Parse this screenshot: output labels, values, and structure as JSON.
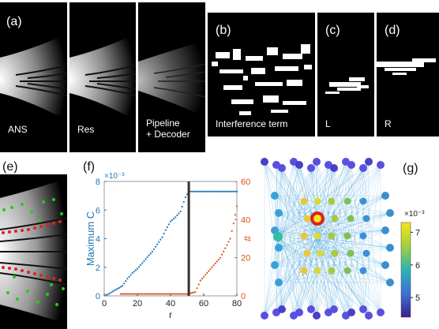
{
  "panels": {
    "a": {
      "label": "(a)",
      "captions": [
        "ANS",
        "Res",
        "Pipeline\n+ Decoder"
      ]
    },
    "b": {
      "label": "(b)",
      "caption": "Interference term"
    },
    "c": {
      "label": "(c)",
      "caption": "L"
    },
    "d": {
      "label": "(d)",
      "caption": "R"
    },
    "e": {
      "label": "(e)"
    },
    "f": {
      "label": "(f)"
    },
    "g": {
      "label": "(g)"
    }
  },
  "chart_data": [
    {
      "type": "scatter",
      "panel": "f",
      "xlabel": "r",
      "ylabel_left": "Maximum C",
      "ylabel_right": "#",
      "left_scale_note": "×10⁻³",
      "xlim": [
        0,
        80
      ],
      "ylim_left": [
        0,
        8
      ],
      "ylim_right": [
        0,
        60
      ],
      "xticks": [
        0,
        20,
        40,
        60,
        80
      ],
      "yticks_left": [
        0,
        2,
        4,
        6,
        8
      ],
      "yticks_right": [
        0,
        20,
        40,
        60
      ],
      "vertical_marker_r": 51,
      "colors": {
        "left": "#1f77b4",
        "right": "#d95319",
        "marker": "#333333"
      },
      "series": [
        {
          "axis": "left",
          "points": [
            [
              1,
              0.05
            ],
            [
              3,
              0.15
            ],
            [
              5,
              0.3
            ],
            [
              8,
              0.5
            ],
            [
              11,
              0.7
            ],
            [
              14,
              1.2
            ],
            [
              17,
              1.6
            ],
            [
              20,
              1.9
            ],
            [
              23,
              2.3
            ],
            [
              26,
              2.7
            ],
            [
              29,
              3.1
            ],
            [
              32,
              3.6
            ],
            [
              35,
              4.1
            ],
            [
              37,
              4.6
            ],
            [
              40,
              5.2
            ],
            [
              43,
              5.5
            ],
            [
              46,
              5.9
            ],
            [
              49,
              6.9
            ],
            [
              51,
              7.3
            ],
            [
              60,
              7.3
            ],
            [
              70,
              7.3
            ],
            [
              80,
              7.3
            ]
          ]
        },
        {
          "axis": "right",
          "points": [
            [
              10,
              1
            ],
            [
              20,
              1
            ],
            [
              30,
              1
            ],
            [
              40,
              1
            ],
            [
              50,
              1
            ],
            [
              55,
              2
            ],
            [
              58,
              8
            ],
            [
              62,
              12
            ],
            [
              66,
              16
            ],
            [
              70,
              20
            ],
            [
              73,
              25
            ],
            [
              76,
              30
            ],
            [
              78,
              38
            ],
            [
              80,
              47
            ]
          ]
        }
      ]
    },
    {
      "type": "colorbar",
      "panel": "g",
      "scale_note": "×10⁻³",
      "ticks": [
        5,
        6,
        7
      ],
      "range": [
        4.4,
        7.3
      ]
    }
  ]
}
